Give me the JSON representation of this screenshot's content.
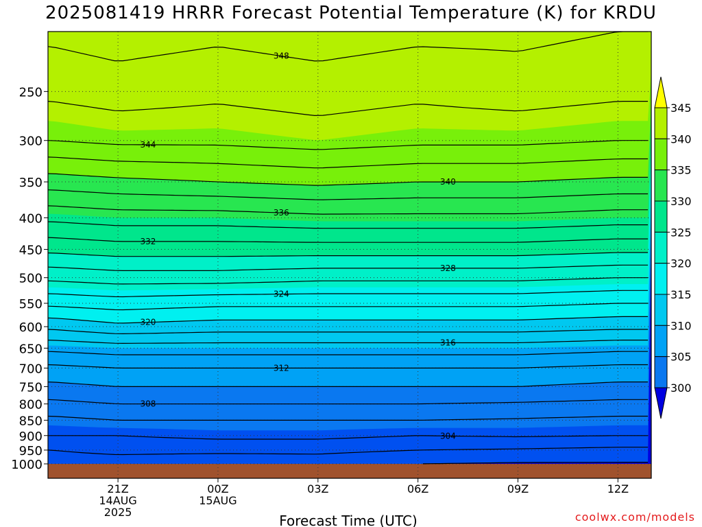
{
  "chart_data": {
    "type": "contour-cross-section",
    "title": "2025081419 HRRR Forecast Potential Temperature (K) for KRDU",
    "xlabel": "Forecast Time (UTC)",
    "x_ticks": [
      {
        "hour": 2,
        "label": "21Z",
        "sub1": "14AUG",
        "sub2": "2025"
      },
      {
        "hour": 5,
        "label": "00Z",
        "sub1": "15AUG",
        "sub2": ""
      },
      {
        "hour": 8,
        "label": "03Z",
        "sub1": "",
        "sub2": ""
      },
      {
        "hour": 11,
        "label": "06Z",
        "sub1": "",
        "sub2": ""
      },
      {
        "hour": 14,
        "label": "09Z",
        "sub1": "",
        "sub2": ""
      },
      {
        "hour": 17,
        "label": "12Z",
        "sub1": "",
        "sub2": ""
      }
    ],
    "xlim": [
      -0.1,
      18
    ],
    "ylabel": "",
    "y_ticks": [
      "250",
      "300",
      "350",
      "400",
      "450",
      "500",
      "550",
      "600",
      "650",
      "700",
      "750",
      "800",
      "850",
      "900",
      "950",
      "1000"
    ],
    "ylim": [
      200,
      1000
    ],
    "y_scale": "log",
    "grid": "dotted",
    "colorbar": {
      "levels": [
        300,
        305,
        310,
        315,
        320,
        325,
        330,
        335,
        340,
        345
      ],
      "labels": [
        "300",
        "305",
        "310",
        "315",
        "320",
        "325",
        "330",
        "335",
        "340",
        "345"
      ],
      "colors": [
        "#0000e0",
        "#0050f0",
        "#0a78f0",
        "#00a2f5",
        "#00c8f0",
        "#00f0f0",
        "#00f0c8",
        "#00e68c",
        "#28e650",
        "#78f00a",
        "#b4f000",
        "#ffff00"
      ],
      "placement": "right"
    },
    "theta_profile": {
      "hours": [
        0,
        2,
        5,
        8,
        11,
        14,
        17,
        18
      ],
      "pressure": [
        1000,
        950,
        900,
        850,
        800,
        750,
        700,
        650,
        600,
        550,
        500,
        450,
        400,
        350,
        300,
        250,
        200
      ],
      "theta": [
        [
          301.0,
          301.0,
          300.5,
          300.8,
          300.0,
          299.8,
          299.8,
          299.8
        ],
        [
          302.0,
          302.5,
          302.5,
          302.5,
          302.0,
          301.8,
          301.5,
          301.5
        ],
        [
          304.0,
          304.0,
          304.5,
          304.5,
          304.0,
          304.2,
          304.0,
          304.0
        ],
        [
          305.5,
          306.0,
          306.0,
          306.0,
          306.0,
          305.8,
          305.5,
          305.5
        ],
        [
          307.5,
          308.0,
          308.0,
          308.0,
          308.0,
          307.8,
          307.5,
          307.5
        ],
        [
          309.5,
          310.0,
          310.0,
          310.0,
          310.0,
          310.0,
          309.5,
          309.5
        ],
        [
          311.5,
          312.0,
          312.0,
          312.0,
          312.0,
          312.0,
          311.5,
          311.5
        ],
        [
          314.5,
          315.0,
          315.0,
          315.0,
          315.0,
          315.0,
          314.5,
          314.5
        ],
        [
          318.5,
          319.5,
          319.0,
          319.0,
          319.0,
          319.0,
          318.5,
          318.5
        ],
        [
          322.5,
          323.0,
          322.5,
          322.5,
          322.5,
          322.5,
          322.0,
          322.0
        ],
        [
          326.5,
          327.0,
          327.0,
          326.5,
          326.5,
          326.5,
          326.0,
          326.0
        ],
        [
          330.5,
          331.0,
          331.0,
          331.0,
          331.0,
          331.0,
          330.5,
          330.5
        ],
        [
          334.5,
          335.0,
          335.0,
          335.5,
          335.5,
          335.5,
          335.0,
          335.0
        ],
        [
          339.0,
          339.5,
          340.0,
          340.5,
          340.0,
          340.0,
          339.5,
          339.5
        ],
        [
          344.0,
          344.5,
          344.5,
          345.0,
          344.5,
          344.5,
          344.0,
          344.0
        ],
        [
          346.5,
          347.0,
          346.5,
          347.0,
          346.5,
          347.0,
          346.5,
          346.5
        ],
        [
          348.5,
          349.0,
          348.5,
          349.0,
          348.5,
          348.5,
          348.0,
          348.0
        ]
      ]
    },
    "contour_labels": [
      "348",
      "344",
      "340",
      "336",
      "332",
      "328",
      "324",
      "320",
      "316",
      "312",
      "308",
      "304",
      "300"
    ]
  },
  "credit": "coolwx.com/models"
}
